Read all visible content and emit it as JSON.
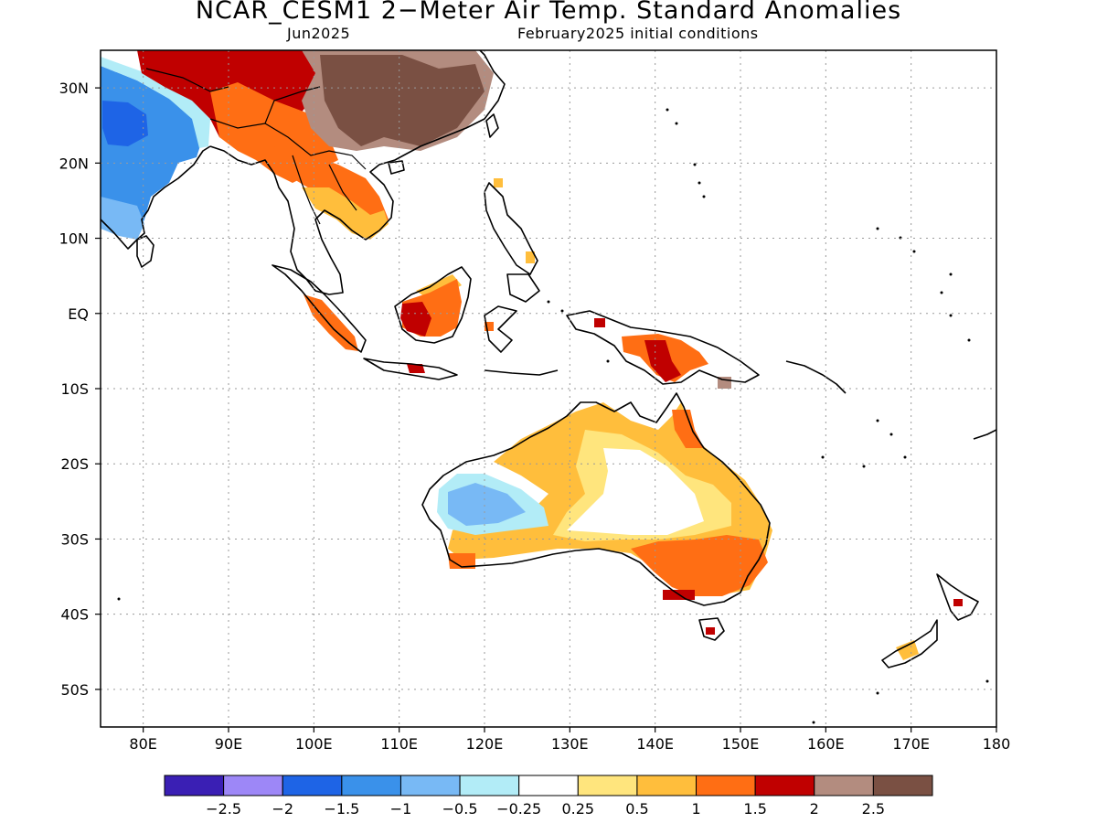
{
  "title": "NCAR_CESM1 2−Meter Air Temp. Standard Anomalies",
  "subtitle_left": "Jun2025",
  "subtitle_right": "February2025 initial conditions",
  "map": {
    "lon_range": [
      75,
      180
    ],
    "lat_range": [
      -55,
      35
    ],
    "lon_ticks": [
      {
        "v": 80,
        "t": "80E"
      },
      {
        "v": 90,
        "t": "90E"
      },
      {
        "v": 100,
        "t": "100E"
      },
      {
        "v": 110,
        "t": "110E"
      },
      {
        "v": 120,
        "t": "120E"
      },
      {
        "v": 130,
        "t": "130E"
      },
      {
        "v": 140,
        "t": "140E"
      },
      {
        "v": 150,
        "t": "150E"
      },
      {
        "v": 160,
        "t": "160E"
      },
      {
        "v": 170,
        "t": "170E"
      },
      {
        "v": 180,
        "t": "180"
      }
    ],
    "lat_ticks": [
      {
        "v": 30,
        "t": "30N"
      },
      {
        "v": 20,
        "t": "20N"
      },
      {
        "v": 10,
        "t": "10N"
      },
      {
        "v": 0,
        "t": "EQ"
      },
      {
        "v": -10,
        "t": "10S"
      },
      {
        "v": -20,
        "t": "20S"
      },
      {
        "v": -30,
        "t": "30S"
      },
      {
        "v": -40,
        "t": "40S"
      },
      {
        "v": -50,
        "t": "50S"
      }
    ],
    "gridlines": "dotted"
  },
  "colorbar": {
    "colors": [
      "#3a1fb4",
      "#9d87f7",
      "#1e64e6",
      "#3a91ea",
      "#78b9f5",
      "#b2ecf7",
      "#ffffff",
      "#ffe57d",
      "#ffbe3c",
      "#ff6e14",
      "#c00000",
      "#b38c7f",
      "#7a5043"
    ],
    "labels": [
      "−2.5",
      "−2",
      "−1.5",
      "−1",
      "−0.5",
      "−0.25",
      "0.25",
      "0.5",
      "1",
      "1.5",
      "2",
      "2.5"
    ]
  },
  "anomaly_fields": [
    {
      "name": "india-cold-anomaly",
      "level": "−1",
      "color": "#3a91ea"
    },
    {
      "name": "india-core-cold-anomaly",
      "level": "−1.5",
      "color": "#1e64e6"
    },
    {
      "name": "tibet-warm-anomaly",
      "level": "2",
      "color": "#c00000"
    },
    {
      "name": "china-strong-warm-anomaly",
      "level": "2.5",
      "color": "#7a5043"
    },
    {
      "name": "indochina-warm-anomaly",
      "level": "1.5",
      "color": "#ff6e14"
    },
    {
      "name": "borneo-warm-anomaly",
      "level": "2",
      "color": "#c00000"
    },
    {
      "name": "new-guinea-warm-anomaly",
      "level": "1.5",
      "color": "#ff6e14"
    },
    {
      "name": "australia-interior-warm-anomaly",
      "level": "1",
      "color": "#ffbe3c"
    },
    {
      "name": "west-australia-cold-anomaly",
      "level": "−0.5",
      "color": "#78b9f5"
    },
    {
      "name": "southeast-australia-warm-anomaly",
      "level": "1.5",
      "color": "#ff6e14"
    }
  ]
}
